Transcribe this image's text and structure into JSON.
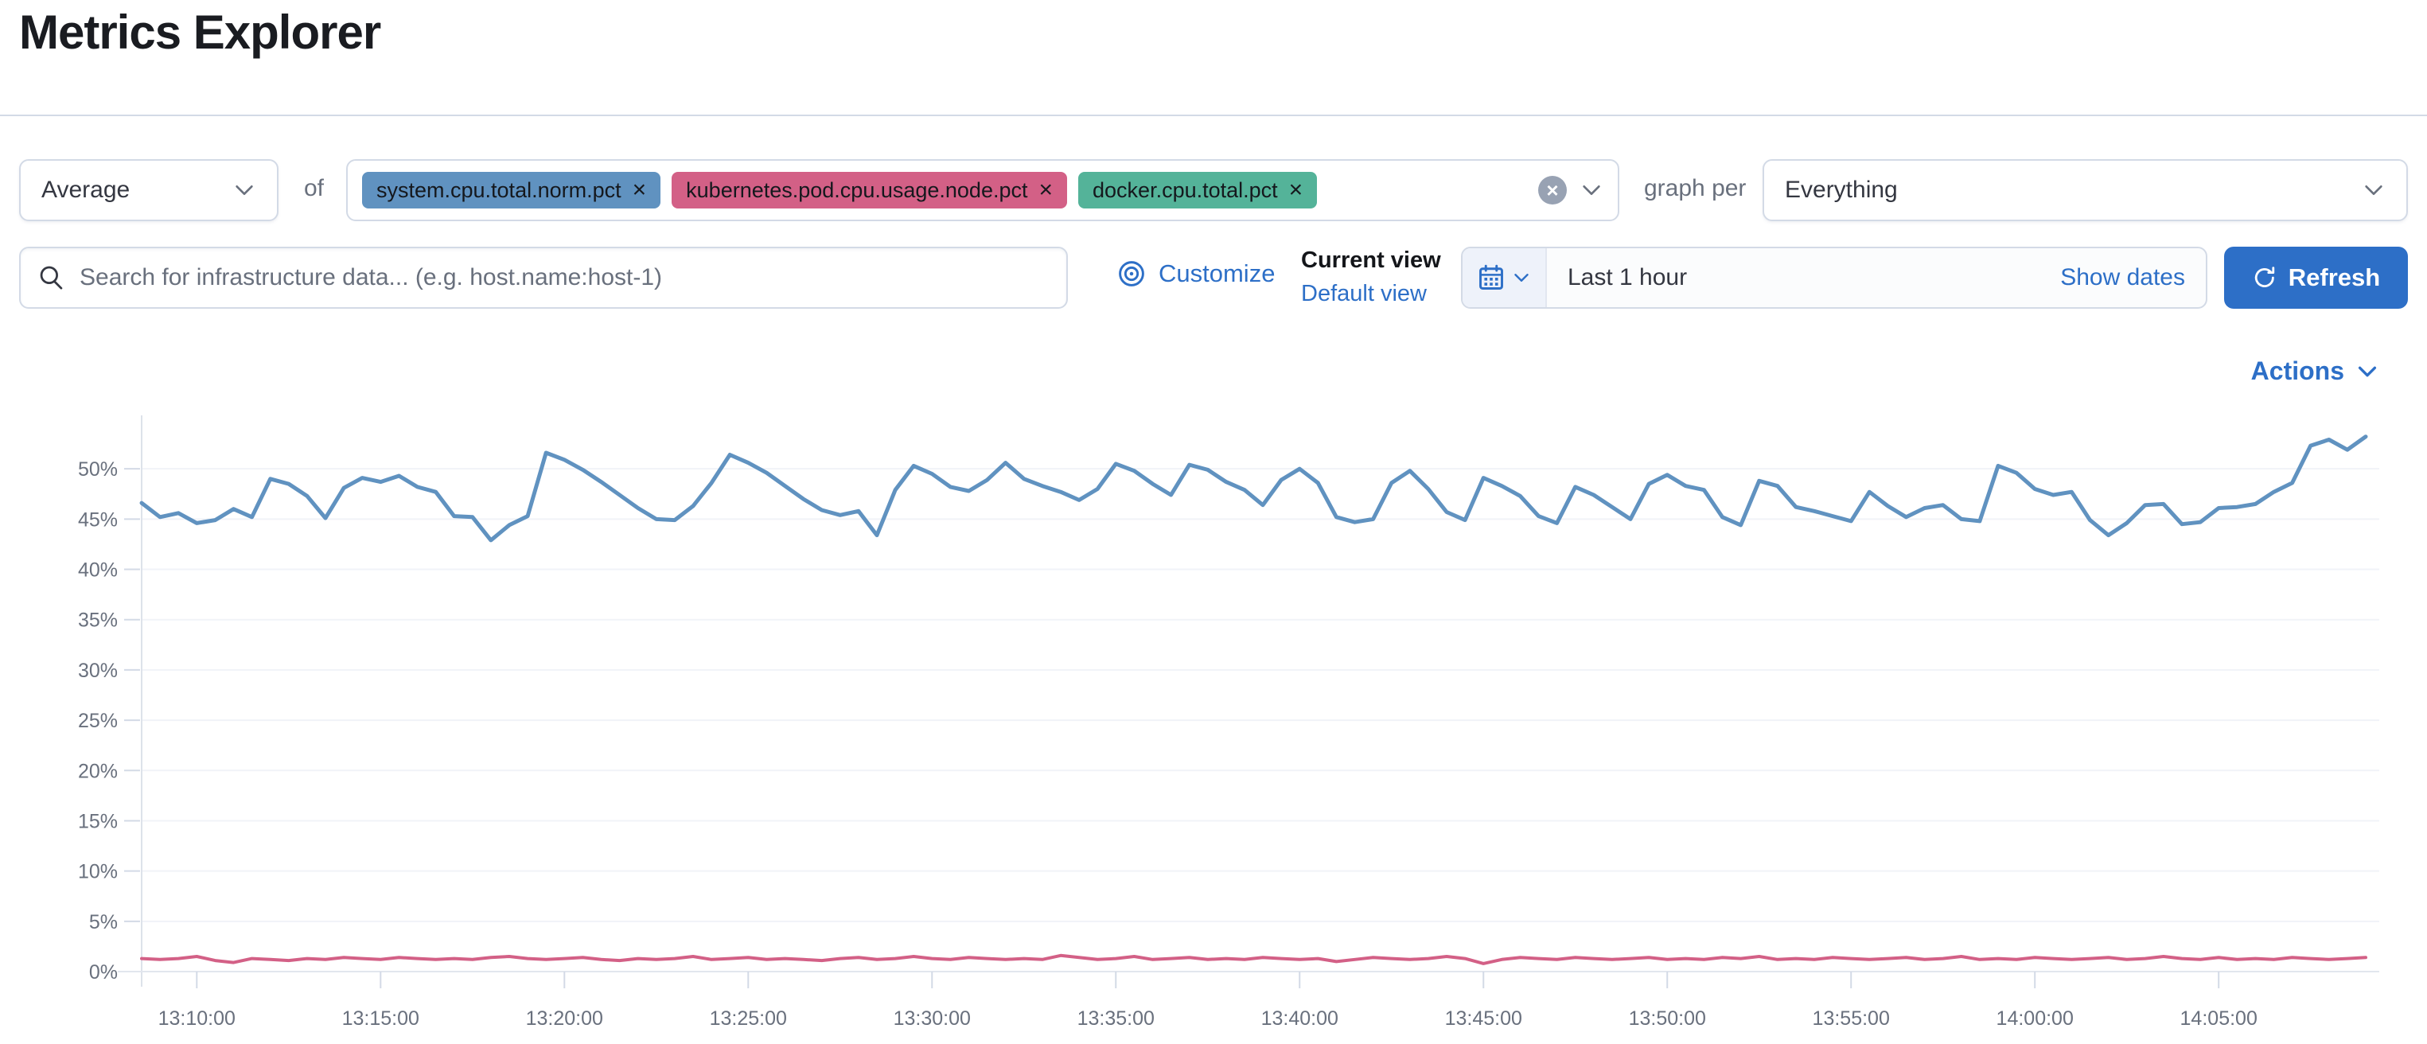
{
  "page_title": "Metrics Explorer",
  "toolbar": {
    "aggregation": {
      "value": "Average"
    },
    "of_label": "of",
    "metrics": {
      "pills": [
        {
          "label": "system.cpu.total.norm.pct",
          "remove": "×",
          "color": "#6092C0"
        },
        {
          "label": "kubernetes.pod.cpu.usage.node.pct",
          "remove": "×",
          "color": "#D36086"
        },
        {
          "label": "docker.cpu.total.pct",
          "remove": "×",
          "color": "#54B399"
        }
      ],
      "clear_glyph": "×"
    },
    "graph_per_label": "graph per",
    "group_by": {
      "value": "Everything"
    }
  },
  "search": {
    "placeholder": "Search for infrastructure data... (e.g. host.name:host-1)"
  },
  "view_controls": {
    "customize_label": "Customize",
    "current_view_label": "Current view",
    "default_view_label": "Default view"
  },
  "time_picker": {
    "value": "Last 1 hour",
    "show_dates_label": "Show dates",
    "refresh_label": "Refresh"
  },
  "actions_label": "Actions",
  "colors": {
    "link_blue": "#2d6fc7",
    "series_blue": "#6092C0",
    "series_pink": "#D36086",
    "axis_text": "#69707d"
  },
  "chart_data": {
    "type": "line",
    "title": "",
    "xlabel": "",
    "ylabel": "",
    "x_start": "13:08:30",
    "x_interval_seconds": 30,
    "x_tick_labels": [
      "13:10:00",
      "13:15:00",
      "13:20:00",
      "13:25:00",
      "13:30:00",
      "13:35:00",
      "13:40:00",
      "13:45:00",
      "13:50:00",
      "13:55:00",
      "14:00:00",
      "14:05:00"
    ],
    "y_tick_labels": [
      "0%",
      "5%",
      "10%",
      "15%",
      "20%",
      "25%",
      "30%",
      "35%",
      "40%",
      "45%",
      "50%"
    ],
    "ylim": [
      0,
      55
    ],
    "grid": true,
    "legend": false,
    "series": [
      {
        "name": "avg of system.cpu.total.norm.pct",
        "color": "#6092C0",
        "values": [
          46.6,
          45.2,
          45.6,
          44.6,
          44.9,
          46.0,
          45.2,
          49.0,
          48.5,
          47.3,
          45.1,
          48.1,
          49.1,
          48.7,
          49.3,
          48.2,
          47.7,
          45.3,
          45.2,
          42.9,
          44.4,
          45.3,
          51.6,
          50.9,
          49.9,
          48.7,
          47.4,
          46.1,
          45.0,
          44.9,
          46.3,
          48.6,
          51.4,
          50.6,
          49.6,
          48.3,
          47.0,
          45.9,
          45.4,
          45.8,
          43.4,
          47.9,
          50.3,
          49.5,
          48.2,
          47.8,
          48.9,
          50.6,
          49.0,
          48.3,
          47.7,
          46.9,
          48.0,
          50.5,
          49.8,
          48.5,
          47.4,
          50.4,
          49.9,
          48.7,
          47.9,
          46.4,
          48.9,
          50.0,
          48.6,
          45.2,
          44.7,
          45.0,
          48.6,
          49.8,
          48.0,
          45.7,
          44.9,
          49.1,
          48.3,
          47.3,
          45.3,
          44.6,
          48.2,
          47.4,
          46.2,
          45.0,
          48.5,
          49.4,
          48.3,
          47.9,
          45.2,
          44.4,
          48.8,
          48.3,
          46.2,
          45.8,
          45.3,
          44.8,
          47.7,
          46.3,
          45.2,
          46.1,
          46.4,
          45.0,
          44.8,
          50.3,
          49.6,
          48.0,
          47.4,
          47.7,
          44.9,
          43.4,
          44.6,
          46.4,
          46.5,
          44.5,
          44.7,
          46.1,
          46.2,
          46.5,
          47.7,
          48.6,
          52.3,
          52.9,
          51.9,
          53.2
        ]
      },
      {
        "name": "avg of kubernetes.pod.cpu.usage.node.pct",
        "color": "#D36086",
        "values": [
          1.3,
          1.2,
          1.3,
          1.5,
          1.1,
          0.9,
          1.3,
          1.2,
          1.1,
          1.3,
          1.2,
          1.4,
          1.3,
          1.2,
          1.4,
          1.3,
          1.2,
          1.3,
          1.2,
          1.4,
          1.5,
          1.3,
          1.2,
          1.3,
          1.4,
          1.2,
          1.1,
          1.3,
          1.2,
          1.3,
          1.5,
          1.2,
          1.3,
          1.4,
          1.2,
          1.3,
          1.2,
          1.1,
          1.3,
          1.4,
          1.2,
          1.3,
          1.5,
          1.3,
          1.2,
          1.4,
          1.3,
          1.2,
          1.3,
          1.2,
          1.6,
          1.4,
          1.2,
          1.3,
          1.5,
          1.2,
          1.3,
          1.4,
          1.2,
          1.3,
          1.2,
          1.4,
          1.3,
          1.2,
          1.3,
          1.0,
          1.2,
          1.4,
          1.3,
          1.2,
          1.3,
          1.5,
          1.3,
          0.8,
          1.2,
          1.4,
          1.3,
          1.2,
          1.4,
          1.3,
          1.2,
          1.3,
          1.4,
          1.2,
          1.3,
          1.2,
          1.4,
          1.3,
          1.5,
          1.2,
          1.3,
          1.2,
          1.4,
          1.3,
          1.2,
          1.3,
          1.4,
          1.2,
          1.3,
          1.5,
          1.2,
          1.3,
          1.2,
          1.4,
          1.3,
          1.2,
          1.3,
          1.4,
          1.2,
          1.3,
          1.5,
          1.3,
          1.2,
          1.4,
          1.2,
          1.3,
          1.2,
          1.4,
          1.3,
          1.2,
          1.3,
          1.4
        ]
      }
    ]
  }
}
